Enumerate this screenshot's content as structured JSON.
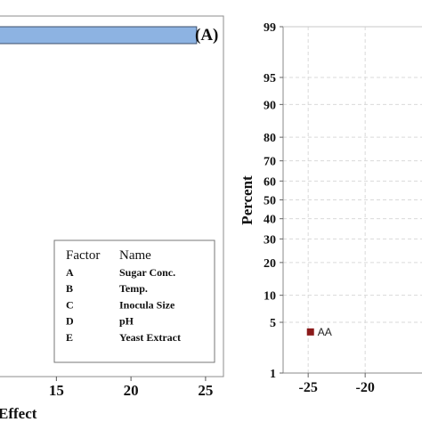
{
  "chart_data": [
    {
      "type": "bar",
      "orientation": "horizontal",
      "panel_label": "(A)",
      "xlabel": "Effect",
      "x_tick_labels": [
        "15",
        "20",
        "25"
      ],
      "xlim": [
        11.1,
        26.2
      ],
      "values": [
        24.4
      ],
      "bar_color": "#8db3e2",
      "grid": false,
      "legend": {
        "placement": "bottom-right",
        "headers": [
          "Factor",
          "Name"
        ],
        "rows": [
          {
            "factor": "A",
            "name": "Sugar Conc."
          },
          {
            "factor": "B",
            "name": "Temp."
          },
          {
            "factor": "C",
            "name": "Inocula Size"
          },
          {
            "factor": "D",
            "name": "pH"
          },
          {
            "factor": "E",
            "name": "Yeast Extract"
          }
        ]
      }
    },
    {
      "type": "scatter",
      "yscale": "normal-probability",
      "ylabel": "Percent",
      "y_tick_labels": [
        "99",
        "95",
        "90",
        "80",
        "70",
        "60",
        "50",
        "40",
        "30",
        "20",
        "10",
        "5",
        "1"
      ],
      "x_tick_labels": [
        "-25",
        "-20"
      ],
      "xlim": [
        -27.2,
        -14.7
      ],
      "ylim": [
        1,
        99
      ],
      "grid": true,
      "points": [
        {
          "label": "AA",
          "x": -24.8,
          "y": 3.8,
          "color": "#8b1a1a"
        }
      ]
    }
  ]
}
